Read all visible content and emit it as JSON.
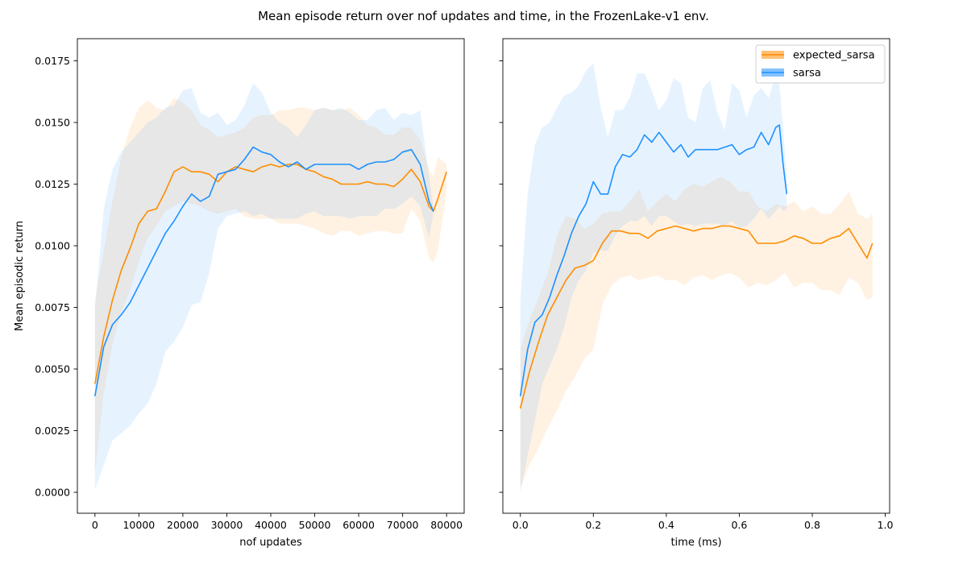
{
  "figure": {
    "title": "Mean episode return over nof updates and time, in the FrozenLake-v1 env."
  },
  "colors": {
    "expected_sarsa": "#ff8c00",
    "sarsa": "#1e90ff"
  },
  "chart_data": [
    {
      "type": "line",
      "xlabel": "nof updates",
      "ylabel": "Mean episodic return",
      "xlim": [
        -4000,
        84000
      ],
      "ylim": [
        -0.00085,
        0.0184
      ],
      "xticks": [
        0,
        10000,
        20000,
        30000,
        40000,
        50000,
        60000,
        70000,
        80000
      ],
      "xtick_labels": [
        "0",
        "10000",
        "20000",
        "30000",
        "40000",
        "50000",
        "60000",
        "70000",
        "80000"
      ],
      "yticks": [
        0.0,
        0.0025,
        0.005,
        0.0075,
        0.01,
        0.0125,
        0.015,
        0.0175
      ],
      "ytick_labels": [
        "0.0000",
        "0.0025",
        "0.0050",
        "0.0075",
        "0.0100",
        "0.0125",
        "0.0150",
        "0.0175"
      ],
      "grid": false,
      "legend": false,
      "series": [
        {
          "name": "expected_sarsa",
          "x": [
            0,
            2000,
            4000,
            6000,
            8000,
            10000,
            12000,
            14000,
            16000,
            18000,
            20000,
            22000,
            24000,
            26000,
            28000,
            30000,
            32000,
            34000,
            36000,
            38000,
            40000,
            42000,
            44000,
            46000,
            48000,
            50000,
            52000,
            54000,
            56000,
            58000,
            60000,
            62000,
            64000,
            66000,
            68000,
            70000,
            72000,
            74000,
            76000,
            77000,
            78000,
            80000
          ],
          "y": [
            0.0044,
            0.0063,
            0.0078,
            0.009,
            0.0099,
            0.0109,
            0.0114,
            0.0115,
            0.0122,
            0.013,
            0.0132,
            0.013,
            0.013,
            0.0129,
            0.0126,
            0.013,
            0.0132,
            0.0131,
            0.013,
            0.0132,
            0.0133,
            0.0132,
            0.0133,
            0.0133,
            0.0131,
            0.013,
            0.0128,
            0.0127,
            0.0125,
            0.0125,
            0.0125,
            0.0126,
            0.0125,
            0.0125,
            0.0124,
            0.0127,
            0.0131,
            0.0126,
            0.0116,
            0.0114,
            0.0119,
            0.013
          ],
          "lower": [
            0.0008,
            0.004,
            0.006,
            0.0073,
            0.0082,
            0.0094,
            0.0103,
            0.0108,
            0.0114,
            0.0116,
            0.0118,
            0.0117,
            0.0116,
            0.0114,
            0.0113,
            0.0114,
            0.0115,
            0.0112,
            0.0111,
            0.0111,
            0.0111,
            0.0109,
            0.0109,
            0.0109,
            0.0108,
            0.0107,
            0.0105,
            0.0104,
            0.0106,
            0.0106,
            0.0104,
            0.0105,
            0.0106,
            0.0106,
            0.0105,
            0.0105,
            0.0115,
            0.011,
            0.0095,
            0.0093,
            0.0098,
            0.0122
          ],
          "upper": [
            0.0078,
            0.0098,
            0.0118,
            0.0136,
            0.0148,
            0.0156,
            0.0159,
            0.0156,
            0.0155,
            0.016,
            0.0158,
            0.0155,
            0.0149,
            0.0147,
            0.0144,
            0.0145,
            0.0146,
            0.0148,
            0.0152,
            0.0153,
            0.0153,
            0.0155,
            0.0155,
            0.0156,
            0.0156,
            0.0155,
            0.0156,
            0.0155,
            0.0155,
            0.0156,
            0.0153,
            0.0149,
            0.0148,
            0.0145,
            0.0145,
            0.0148,
            0.0148,
            0.0143,
            0.0131,
            0.0128,
            0.0136,
            0.0133
          ]
        },
        {
          "name": "sarsa",
          "x": [
            0,
            2000,
            4000,
            6000,
            8000,
            10000,
            12000,
            14000,
            16000,
            18000,
            20000,
            22000,
            24000,
            26000,
            28000,
            30000,
            32000,
            34000,
            36000,
            38000,
            40000,
            42000,
            44000,
            46000,
            48000,
            50000,
            52000,
            54000,
            56000,
            58000,
            60000,
            62000,
            64000,
            66000,
            68000,
            70000,
            72000,
            74000,
            76000,
            77000
          ],
          "y": [
            0.0039,
            0.0059,
            0.0068,
            0.0072,
            0.0077,
            0.0084,
            0.0091,
            0.0098,
            0.0105,
            0.011,
            0.0116,
            0.0121,
            0.0118,
            0.012,
            0.0129,
            0.013,
            0.0131,
            0.0135,
            0.014,
            0.0138,
            0.0137,
            0.0134,
            0.0132,
            0.0134,
            0.0131,
            0.0133,
            0.0133,
            0.0133,
            0.0133,
            0.0133,
            0.0131,
            0.0133,
            0.0134,
            0.0134,
            0.0135,
            0.0138,
            0.0139,
            0.0133,
            0.0118,
            0.0114
          ],
          "lower": [
            0.0001,
            0.0011,
            0.0021,
            0.0024,
            0.0027,
            0.0032,
            0.0036,
            0.0044,
            0.0057,
            0.0061,
            0.0067,
            0.0076,
            0.0077,
            0.0089,
            0.0107,
            0.0112,
            0.0113,
            0.0114,
            0.0112,
            0.0113,
            0.0111,
            0.0111,
            0.0111,
            0.0111,
            0.0113,
            0.0114,
            0.0112,
            0.0112,
            0.0112,
            0.0111,
            0.0112,
            0.0112,
            0.0112,
            0.0115,
            0.0115,
            0.0117,
            0.012,
            0.0116,
            0.0103,
            0.0113
          ],
          "upper": [
            0.0074,
            0.0115,
            0.0131,
            0.0138,
            0.0142,
            0.0146,
            0.015,
            0.0152,
            0.0156,
            0.0157,
            0.0163,
            0.0164,
            0.0154,
            0.0152,
            0.0154,
            0.0149,
            0.0151,
            0.0157,
            0.0166,
            0.0162,
            0.0154,
            0.015,
            0.0148,
            0.0144,
            0.0149,
            0.0155,
            0.0156,
            0.0155,
            0.0156,
            0.0154,
            0.0151,
            0.0151,
            0.0155,
            0.0156,
            0.0151,
            0.0154,
            0.0153,
            0.0155,
            0.0128,
            0.0116
          ]
        }
      ]
    },
    {
      "type": "line",
      "xlabel": "time (ms)",
      "ylabel": "",
      "xlim": [
        -0.048,
        1.012
      ],
      "ylim": [
        -0.00085,
        0.0184
      ],
      "xticks": [
        0.0,
        0.2,
        0.4,
        0.6,
        0.8,
        1.0
      ],
      "xtick_labels": [
        "0.0",
        "0.2",
        "0.4",
        "0.6",
        "0.8",
        "1.0"
      ],
      "yticks": [
        0.0,
        0.0025,
        0.005,
        0.0075,
        0.01,
        0.0125,
        0.015,
        0.0175
      ],
      "ytick_labels": [],
      "grid": false,
      "legend": "top-right",
      "legend_entries": [
        "expected_sarsa",
        "sarsa"
      ],
      "series": [
        {
          "name": "expected_sarsa",
          "x": [
            0.0,
            0.025,
            0.05,
            0.075,
            0.1,
            0.125,
            0.15,
            0.175,
            0.2,
            0.225,
            0.25,
            0.275,
            0.3,
            0.325,
            0.35,
            0.375,
            0.4,
            0.425,
            0.45,
            0.475,
            0.5,
            0.525,
            0.55,
            0.575,
            0.6,
            0.625,
            0.65,
            0.675,
            0.7,
            0.725,
            0.75,
            0.775,
            0.8,
            0.825,
            0.85,
            0.875,
            0.9,
            0.925,
            0.95,
            0.965
          ],
          "y": [
            0.0034,
            0.0049,
            0.0061,
            0.0072,
            0.0079,
            0.0086,
            0.0091,
            0.0092,
            0.0094,
            0.0101,
            0.0106,
            0.0106,
            0.0105,
            0.0105,
            0.0103,
            0.0106,
            0.0107,
            0.0108,
            0.0107,
            0.0106,
            0.0107,
            0.0107,
            0.0108,
            0.0108,
            0.0107,
            0.0106,
            0.0101,
            0.0101,
            0.0101,
            0.0102,
            0.0104,
            0.0103,
            0.0101,
            0.0101,
            0.0103,
            0.0104,
            0.0107,
            0.0101,
            0.0095,
            0.0101
          ],
          "lower": [
            0.0002,
            0.0011,
            0.0018,
            0.0026,
            0.0033,
            0.0041,
            0.0047,
            0.0054,
            0.0058,
            0.0076,
            0.0084,
            0.0087,
            0.0088,
            0.0086,
            0.0087,
            0.0088,
            0.0086,
            0.0086,
            0.0084,
            0.0087,
            0.0088,
            0.0086,
            0.0088,
            0.0089,
            0.0087,
            0.0083,
            0.0085,
            0.0084,
            0.0086,
            0.0089,
            0.0083,
            0.0085,
            0.0085,
            0.0082,
            0.0082,
            0.008,
            0.0087,
            0.0085,
            0.0078,
            0.0079
          ],
          "upper": [
            0.0058,
            0.007,
            0.0079,
            0.0089,
            0.0104,
            0.0112,
            0.0111,
            0.0107,
            0.0109,
            0.0113,
            0.0114,
            0.0114,
            0.0118,
            0.0123,
            0.0114,
            0.0118,
            0.0121,
            0.0118,
            0.0123,
            0.0125,
            0.0124,
            0.0126,
            0.0128,
            0.0126,
            0.0122,
            0.0122,
            0.0116,
            0.0114,
            0.0117,
            0.0116,
            0.0118,
            0.0114,
            0.0116,
            0.0113,
            0.0113,
            0.0117,
            0.0122,
            0.0113,
            0.0111,
            0.0113
          ]
        },
        {
          "name": "sarsa",
          "x": [
            0.0,
            0.02,
            0.04,
            0.06,
            0.08,
            0.1,
            0.12,
            0.14,
            0.16,
            0.18,
            0.2,
            0.22,
            0.24,
            0.26,
            0.28,
            0.3,
            0.32,
            0.34,
            0.36,
            0.38,
            0.4,
            0.42,
            0.44,
            0.46,
            0.48,
            0.5,
            0.52,
            0.54,
            0.56,
            0.58,
            0.6,
            0.62,
            0.64,
            0.66,
            0.68,
            0.7,
            0.71,
            0.72,
            0.73
          ],
          "y": [
            0.0039,
            0.0058,
            0.0069,
            0.0072,
            0.0079,
            0.0088,
            0.0096,
            0.0105,
            0.0112,
            0.0117,
            0.0126,
            0.0121,
            0.0121,
            0.0132,
            0.0137,
            0.0136,
            0.0139,
            0.0145,
            0.0142,
            0.0146,
            0.0142,
            0.0138,
            0.0141,
            0.0136,
            0.0139,
            0.0139,
            0.0139,
            0.0139,
            0.014,
            0.0141,
            0.0137,
            0.0139,
            0.014,
            0.0146,
            0.0141,
            0.0148,
            0.0149,
            0.0133,
            0.0121
          ],
          "lower": [
            0.0,
            0.0015,
            0.0029,
            0.0044,
            0.0051,
            0.0058,
            0.0067,
            0.0079,
            0.0086,
            0.009,
            0.0097,
            0.0098,
            0.0098,
            0.0104,
            0.0108,
            0.011,
            0.011,
            0.0112,
            0.0108,
            0.0112,
            0.0112,
            0.011,
            0.0108,
            0.0109,
            0.0108,
            0.0109,
            0.0109,
            0.0109,
            0.0108,
            0.011,
            0.0107,
            0.0108,
            0.0111,
            0.0115,
            0.0111,
            0.0114,
            0.0116,
            0.0114,
            0.0115
          ],
          "upper": [
            0.0078,
            0.0121,
            0.0141,
            0.0148,
            0.015,
            0.0156,
            0.0161,
            0.0162,
            0.0165,
            0.0171,
            0.0174,
            0.0156,
            0.0144,
            0.0155,
            0.0155,
            0.016,
            0.017,
            0.017,
            0.0163,
            0.0155,
            0.0159,
            0.0168,
            0.0166,
            0.0152,
            0.015,
            0.0164,
            0.0167,
            0.0154,
            0.0147,
            0.0166,
            0.0163,
            0.0152,
            0.0161,
            0.0164,
            0.016,
            0.0169,
            0.0165,
            0.0148,
            0.0128
          ]
        }
      ]
    }
  ]
}
